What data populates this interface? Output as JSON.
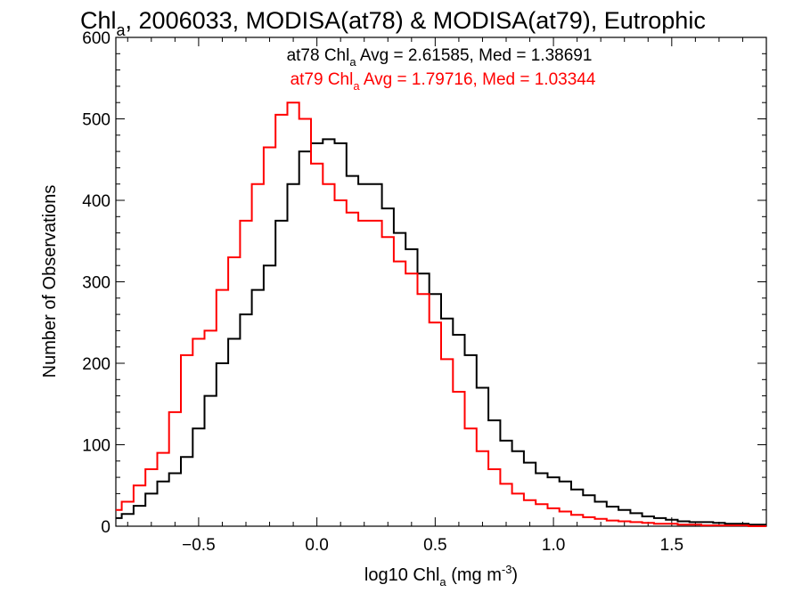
{
  "chart_data": {
    "type": "line",
    "title": {
      "main": "Chl",
      "sub": "a",
      "rest": ", 2006033, MODISA(at78) & MODISA(at79), Eutrophic"
    },
    "xlabel": {
      "pre": "log10 Chl",
      "sub": "a",
      "mid": " (mg m",
      "sup": "-3",
      "post": ")"
    },
    "ylabel": "Number of Observations",
    "xlim": [
      -0.85,
      1.9
    ],
    "ylim": [
      0,
      600
    ],
    "xticks": [
      -0.5,
      0.0,
      0.5,
      1.0,
      1.5
    ],
    "xtick_labels": [
      "−0.5",
      "0.0",
      "0.5",
      "1.0",
      "1.5"
    ],
    "yticks": [
      0,
      100,
      200,
      300,
      400,
      500,
      600
    ],
    "ytick_labels": [
      "0",
      "100",
      "200",
      "300",
      "400",
      "500",
      "600"
    ],
    "style": "histogram-step",
    "annotations": [
      {
        "series": "at78",
        "color": "#000000",
        "pre": "at78 Chl",
        "sub": "a",
        "post": " Avg = 2.61585, Med = 1.38691"
      },
      {
        "series": "at79",
        "color": "#ff0000",
        "pre": "at79 Chl",
        "sub": "a",
        "post": " Avg = 1.79716, Med = 1.03344"
      }
    ],
    "series": [
      {
        "color": "#000000",
        "x": [
          -0.85,
          -0.8,
          -0.75,
          -0.7,
          -0.65,
          -0.6,
          -0.55,
          -0.5,
          -0.45,
          -0.4,
          -0.35,
          -0.3,
          -0.25,
          -0.2,
          -0.15,
          -0.1,
          -0.05,
          0.0,
          0.05,
          0.1,
          0.15,
          0.2,
          0.25,
          0.3,
          0.35,
          0.4,
          0.45,
          0.5,
          0.55,
          0.6,
          0.65,
          0.7,
          0.75,
          0.8,
          0.85,
          0.9,
          0.95,
          1.0,
          1.05,
          1.1,
          1.15,
          1.2,
          1.25,
          1.3,
          1.35,
          1.4,
          1.45,
          1.5,
          1.55,
          1.6,
          1.65,
          1.7,
          1.75,
          1.8,
          1.85,
          1.9
        ],
        "values": [
          10,
          15,
          25,
          40,
          55,
          65,
          85,
          120,
          160,
          200,
          230,
          260,
          290,
          320,
          375,
          420,
          460,
          470,
          475,
          470,
          430,
          420,
          420,
          390,
          360,
          340,
          310,
          285,
          255,
          235,
          210,
          170,
          130,
          105,
          92,
          78,
          65,
          60,
          55,
          45,
          38,
          30,
          24,
          20,
          16,
          12,
          10,
          8,
          6,
          5,
          5,
          4,
          3,
          3,
          2,
          2
        ]
      },
      {
        "color": "#ff0000",
        "x": [
          -0.85,
          -0.8,
          -0.75,
          -0.7,
          -0.65,
          -0.6,
          -0.55,
          -0.5,
          -0.45,
          -0.4,
          -0.35,
          -0.3,
          -0.25,
          -0.2,
          -0.15,
          -0.1,
          -0.05,
          0.0,
          0.05,
          0.1,
          0.15,
          0.2,
          0.25,
          0.3,
          0.35,
          0.4,
          0.45,
          0.5,
          0.55,
          0.6,
          0.65,
          0.7,
          0.75,
          0.8,
          0.85,
          0.9,
          0.95,
          1.0,
          1.05,
          1.1,
          1.15,
          1.2,
          1.25,
          1.3,
          1.35,
          1.4,
          1.45,
          1.5,
          1.55,
          1.6,
          1.65,
          1.7,
          1.75,
          1.8,
          1.85,
          1.9
        ],
        "values": [
          20,
          30,
          50,
          70,
          90,
          140,
          210,
          230,
          240,
          290,
          330,
          375,
          420,
          465,
          505,
          520,
          500,
          445,
          420,
          400,
          385,
          375,
          375,
          355,
          325,
          310,
          285,
          250,
          205,
          165,
          120,
          92,
          70,
          52,
          40,
          32,
          27,
          22,
          18,
          14,
          11,
          9,
          7,
          6,
          5,
          4,
          3,
          3,
          2,
          2,
          1,
          1,
          1,
          1,
          0,
          0
        ]
      }
    ]
  }
}
